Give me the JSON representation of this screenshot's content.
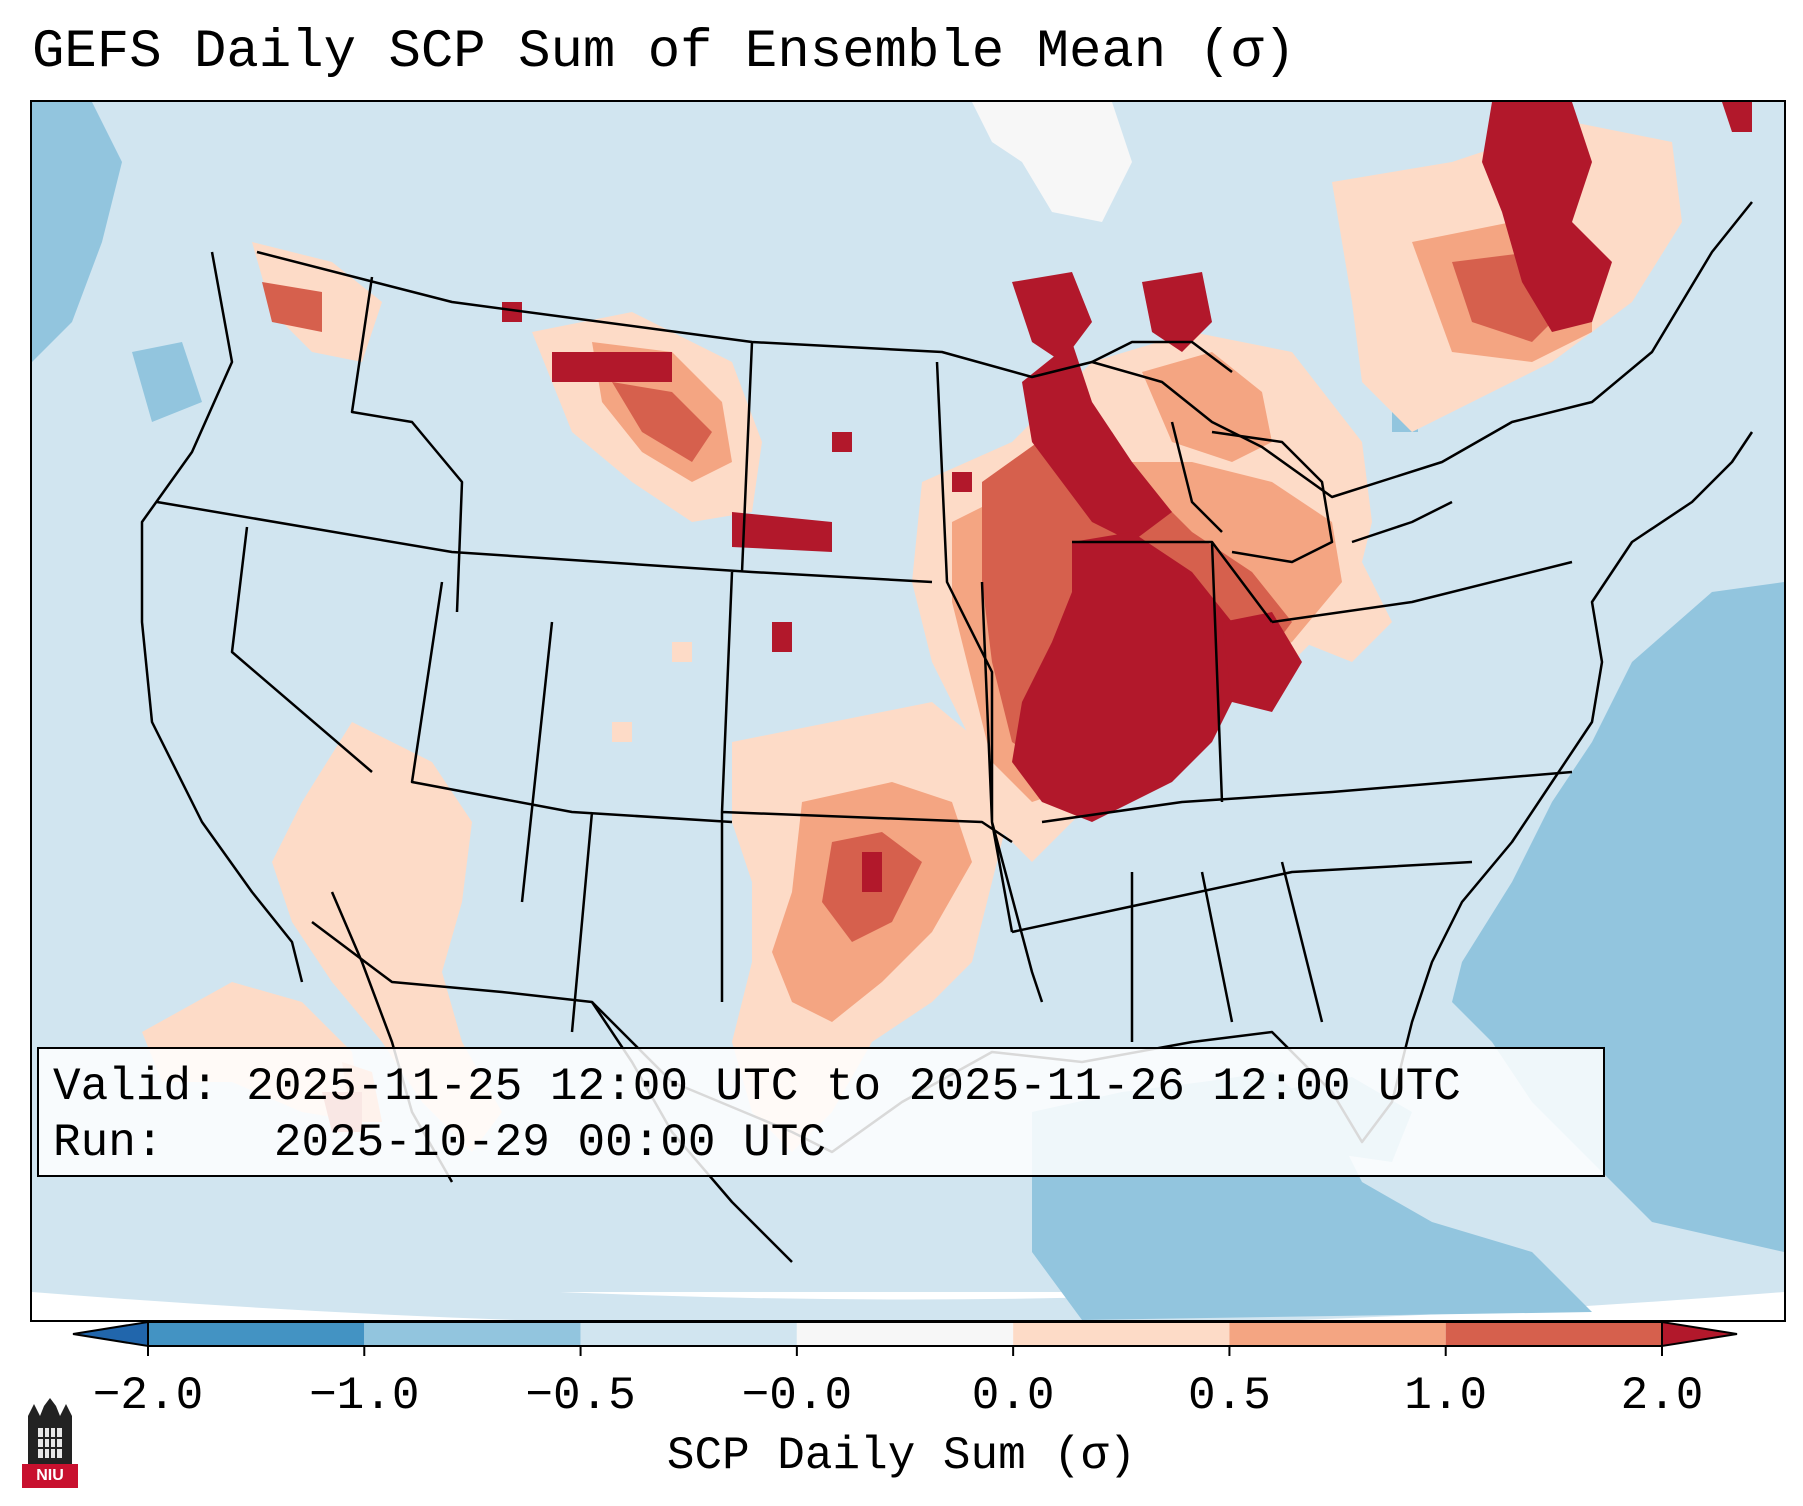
{
  "title": "GEFS Daily SCP Sum of Ensemble Mean (σ)",
  "info": {
    "valid_label": "Valid:",
    "valid_value": "2025-11-25 12:00 UTC to 2025-11-26 12:00 UTC",
    "run_label": "Run:",
    "run_value": "2025-10-29 00:00 UTC"
  },
  "colors": {
    "ocean_neg_strong": "#8fc2de",
    "background_neutral": "#d1e5f0",
    "pos_light": "#fddbc7",
    "pos_mid": "#f4a582",
    "pos_strong": "#d6604d",
    "pos_max": "#b2182b",
    "neg_max": "#2166ac",
    "neg_mid": "#4393c3"
  },
  "colorbar": {
    "label": "SCP Daily Sum (σ)",
    "ticks": [
      "−2.0",
      "−1.0",
      "−0.5",
      "−0.0",
      "0.0",
      "0.5",
      "1.0",
      "2.0"
    ],
    "segments": [
      {
        "from": -2.0,
        "to": -1.0,
        "color": "#4393c3"
      },
      {
        "from": -1.0,
        "to": -0.5,
        "color": "#92c5de"
      },
      {
        "from": -0.5,
        "to": -0.0,
        "color": "#d1e5f0"
      },
      {
        "from": -0.0,
        "to": 0.0,
        "color": "#f7f7f7"
      },
      {
        "from": 0.0,
        "to": 0.5,
        "color": "#fddbc7"
      },
      {
        "from": 0.5,
        "to": 1.0,
        "color": "#f4a582"
      },
      {
        "from": 1.0,
        "to": 2.0,
        "color": "#d6604d"
      }
    ],
    "extend_low_color": "#2166ac",
    "extend_high_color": "#b2182b"
  },
  "regions": [
    {
      "name": "upper-midwest-max",
      "level": "pos_max"
    },
    {
      "name": "illinois-indiana-max",
      "level": "pos_max"
    },
    {
      "name": "quebec-max",
      "level": "pos_max"
    },
    {
      "name": "oklahoma-texas-mid",
      "level": "pos_mid"
    },
    {
      "name": "gulf-atlantic-negative",
      "level": "ocean_neg_strong"
    }
  ],
  "logo": {
    "text": "NIU"
  }
}
